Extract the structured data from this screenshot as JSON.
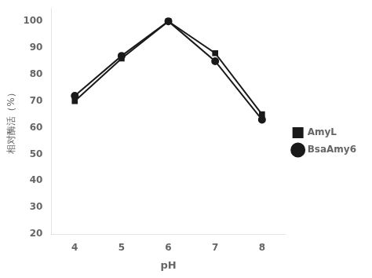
{
  "chart_data": {
    "type": "line",
    "x": [
      4,
      5,
      6,
      7,
      8
    ],
    "xlabel": "pH",
    "ylabel": "相对酶活（%）",
    "series": [
      {
        "name": "AmyL",
        "color": "#1a1a1a",
        "marker": "square",
        "values": [
          70,
          86,
          100,
          88,
          65
        ]
      },
      {
        "name": "BsaAmy6",
        "color": "#1a1a1a",
        "marker": "circle",
        "values": [
          72,
          87,
          100,
          85,
          63
        ]
      }
    ],
    "xlim": [
      3.5,
      8.5
    ],
    "xticks": [
      4,
      5,
      6,
      7,
      8
    ],
    "ylim": [
      20,
      105
    ],
    "yticks": [
      20,
      30,
      40,
      50,
      60,
      70,
      80,
      90,
      100
    ],
    "grid": false,
    "legend": "right"
  }
}
